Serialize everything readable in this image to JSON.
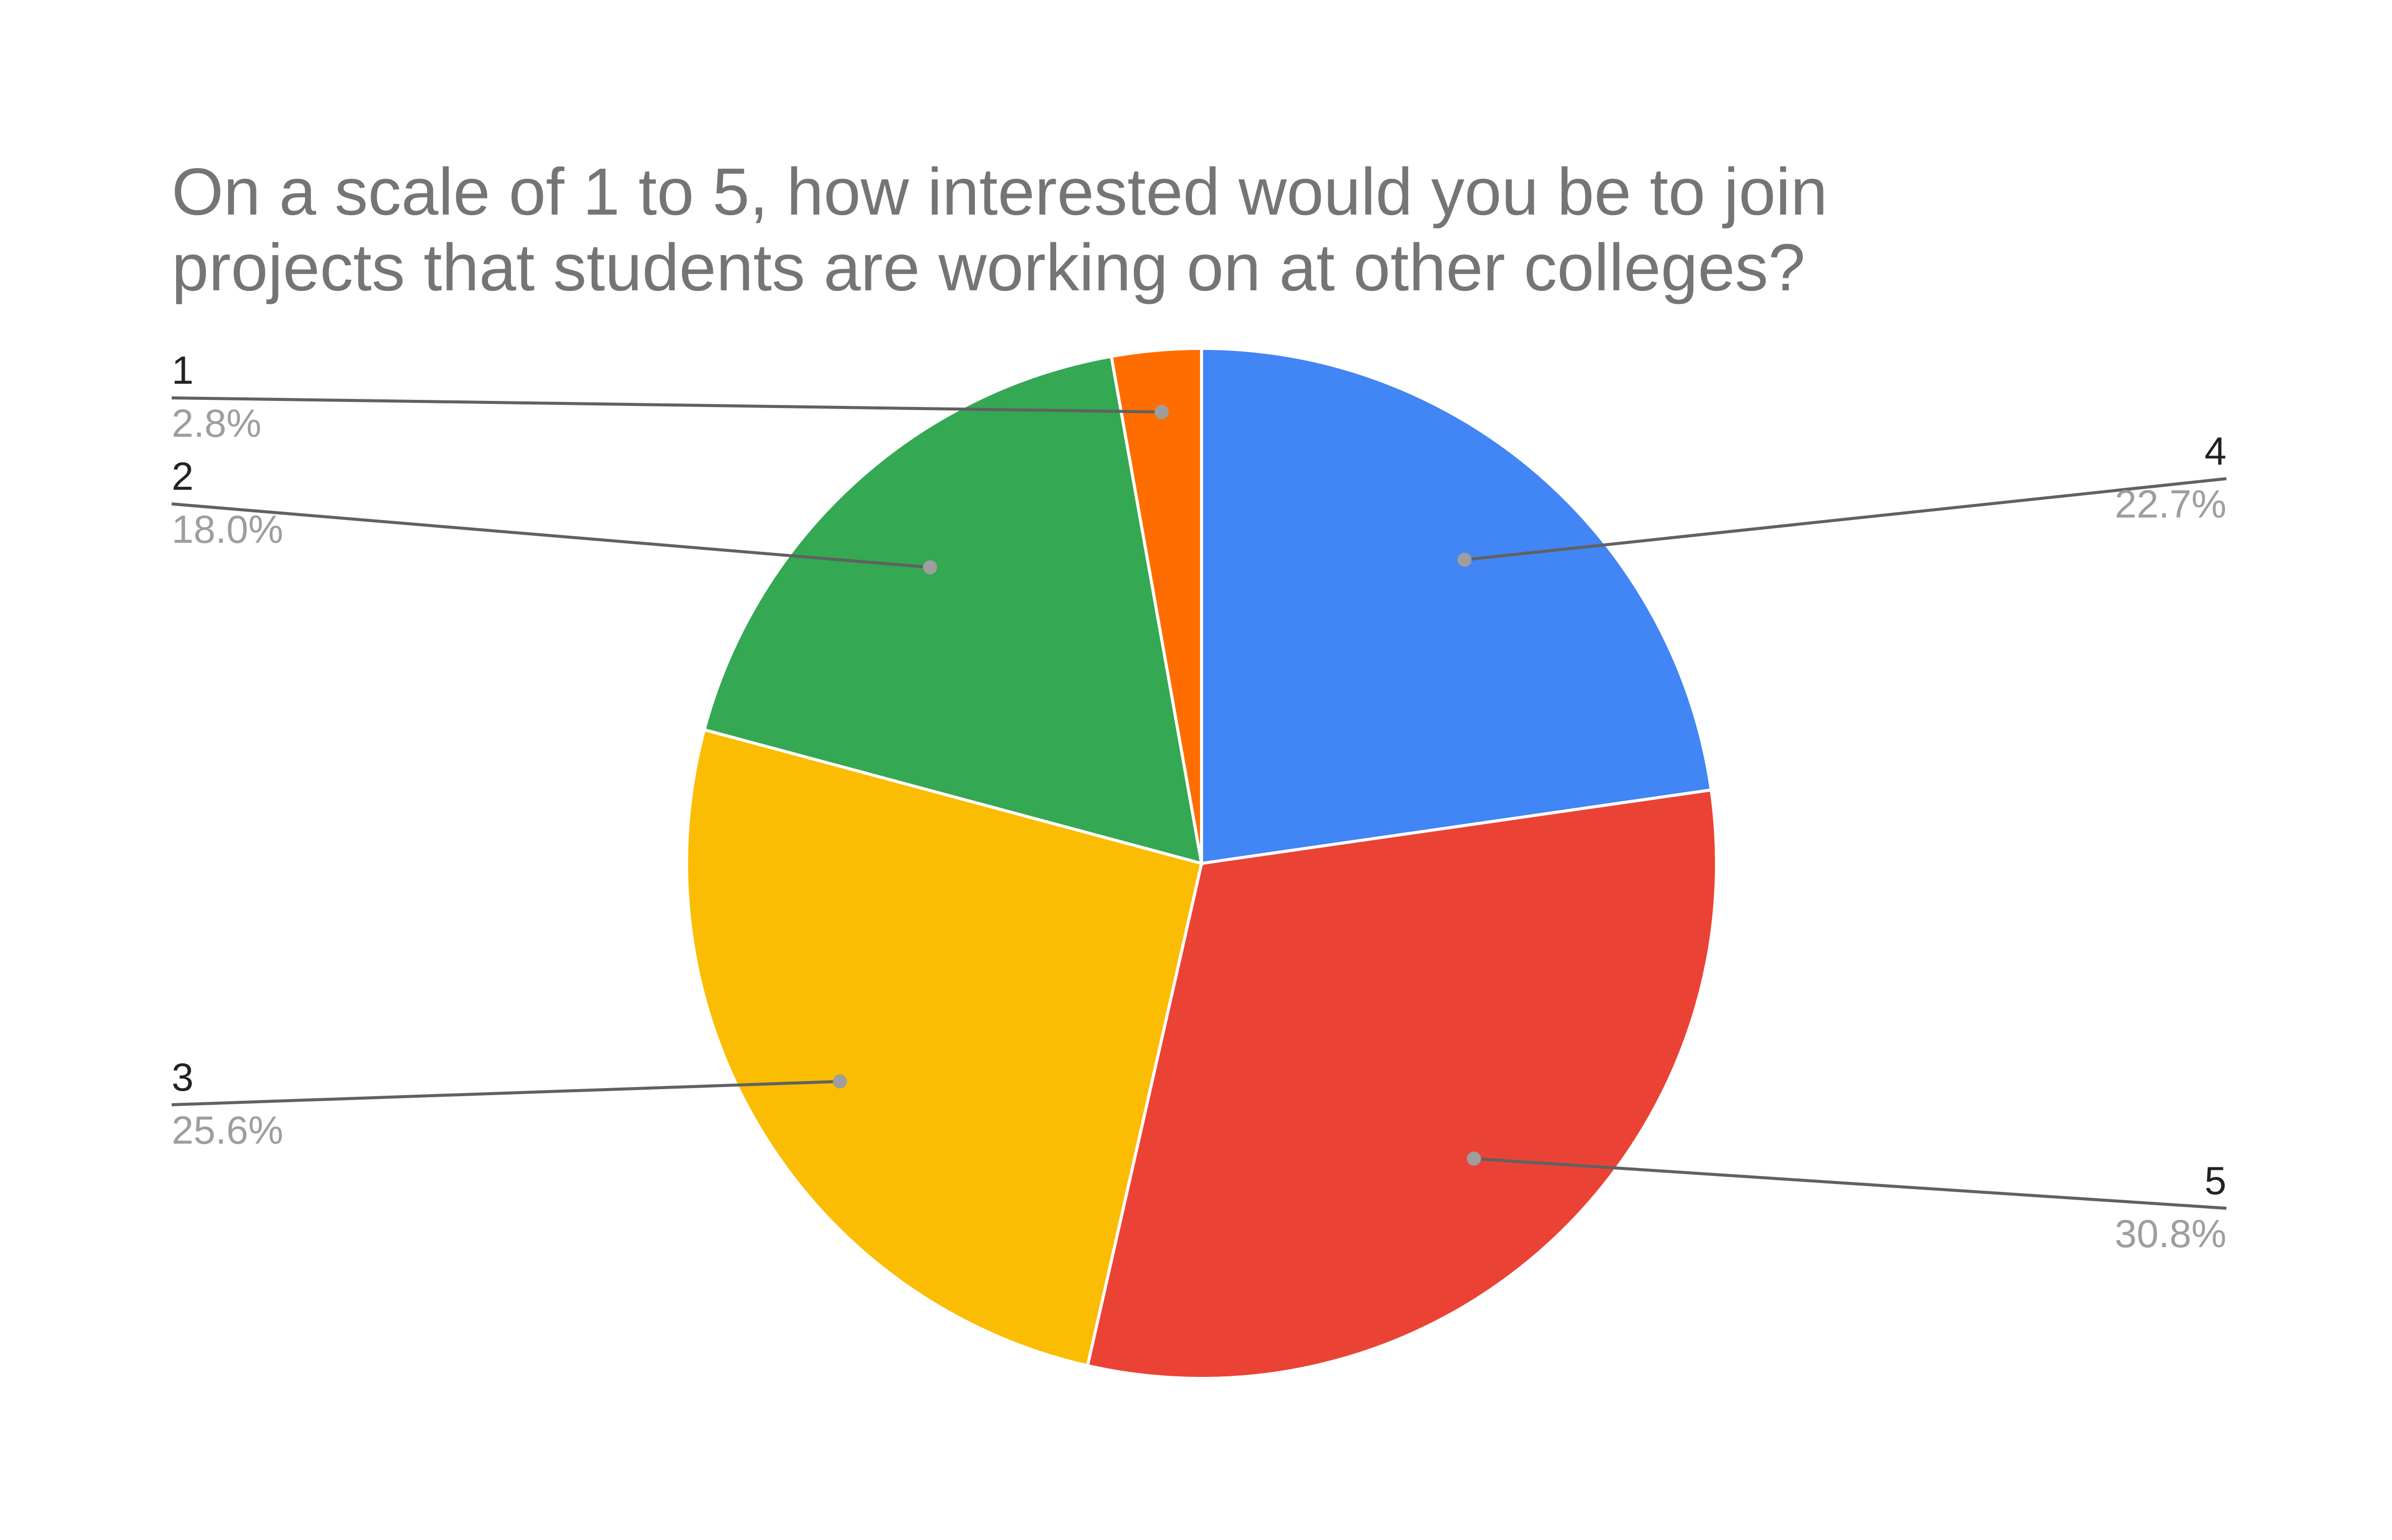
{
  "chart_data": {
    "type": "pie",
    "title": "On a scale of 1 to 5, how interested would you be to join projects that students are working on at other colleges?",
    "title_lines": [
      "On a scale of 1 to 5, how interested would you be to join",
      "projects that students are working on at other colleges?"
    ],
    "slices": [
      {
        "label": "4",
        "value": 22.7,
        "percent_label": "22.7%",
        "color": "#4285F4"
      },
      {
        "label": "5",
        "value": 30.8,
        "percent_label": "30.8%",
        "color": "#EA4335"
      },
      {
        "label": "3",
        "value": 25.6,
        "percent_label": "25.6%",
        "color": "#FBBC04"
      },
      {
        "label": "2",
        "value": 18.0,
        "percent_label": "18.0%",
        "color": "#34A853"
      },
      {
        "label": "1",
        "value": 2.8,
        "percent_label": "2.8%",
        "color": "#FF6D01"
      }
    ],
    "start_angle": "12 o'clock",
    "direction": "clockwise",
    "legend": "none",
    "label_style": "outside labels with leader lines"
  }
}
